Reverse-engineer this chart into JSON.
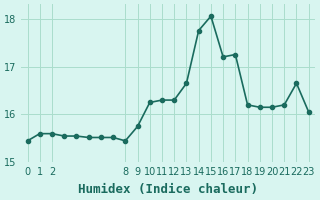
{
  "x": [
    0,
    1,
    2,
    3,
    4,
    5,
    6,
    7,
    8,
    9,
    10,
    11,
    12,
    13,
    14,
    15,
    16,
    17,
    18,
    19,
    20,
    21,
    22,
    23
  ],
  "y": [
    15.45,
    15.6,
    15.6,
    15.55,
    15.55,
    15.52,
    15.52,
    15.52,
    15.45,
    15.75,
    16.25,
    16.3,
    16.3,
    16.65,
    17.75,
    18.05,
    17.2,
    17.25,
    16.2,
    16.15,
    16.15,
    16.2,
    16.65,
    16.05
  ],
  "line_color": "#1a6b5e",
  "marker": "o",
  "marker_size": 3,
  "line_width": 1.2,
  "bg_color": "#d8f5f0",
  "grid_color": "#aaddcc",
  "xlabel": "Humidex (Indice chaleur)",
  "xlabel_fontsize": 9,
  "ylim": [
    15.0,
    18.3
  ],
  "xlim": [
    -0.5,
    23.5
  ],
  "yticks": [
    15,
    16,
    17,
    18
  ],
  "xticks": [
    0,
    1,
    2,
    8,
    9,
    10,
    11,
    12,
    13,
    14,
    15,
    16,
    17,
    18,
    19,
    20,
    21,
    22,
    23
  ],
  "tick_fontsize": 7,
  "tick_color": "#1a6b5e"
}
